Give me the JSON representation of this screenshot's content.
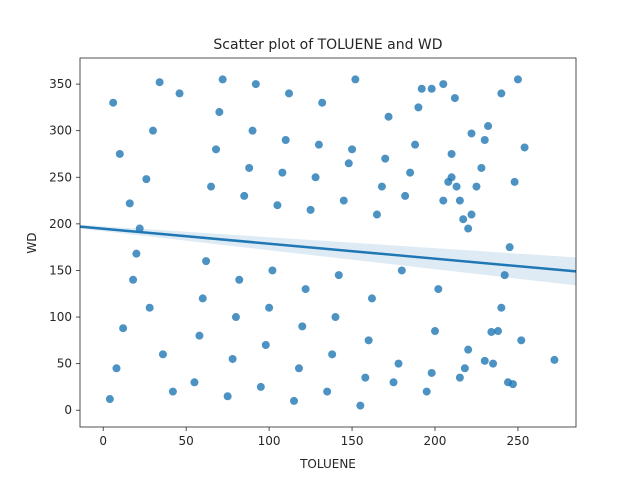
{
  "chart_data": {
    "type": "scatter",
    "title": "Scatter plot of TOLUENE and WD",
    "xlabel": "TOLUENE",
    "ylabel": "WD",
    "xlim": [
      -14,
      285
    ],
    "ylim": [
      -18,
      378
    ],
    "xticks": [
      0,
      50,
      100,
      150,
      200,
      250
    ],
    "yticks": [
      0,
      50,
      100,
      150,
      200,
      250,
      300,
      350
    ],
    "grid": false,
    "legend": "none",
    "point_color": "#1f77b4",
    "point_opacity": 0.8,
    "series": [
      {
        "values": [
          [
            4,
            12
          ],
          [
            8,
            45
          ],
          [
            12,
            88
          ],
          [
            18,
            140
          ],
          [
            22,
            195
          ],
          [
            26,
            248
          ],
          [
            30,
            300
          ],
          [
            34,
            352
          ],
          [
            6,
            330
          ],
          [
            10,
            275
          ],
          [
            16,
            222
          ],
          [
            20,
            168
          ],
          [
            28,
            110
          ],
          [
            36,
            60
          ],
          [
            42,
            20
          ],
          [
            46,
            340
          ],
          [
            55,
            30
          ],
          [
            58,
            80
          ],
          [
            60,
            120
          ],
          [
            62,
            160
          ],
          [
            65,
            240
          ],
          [
            68,
            280
          ],
          [
            70,
            320
          ],
          [
            72,
            355
          ],
          [
            75,
            15
          ],
          [
            78,
            55
          ],
          [
            80,
            100
          ],
          [
            82,
            140
          ],
          [
            85,
            230
          ],
          [
            88,
            260
          ],
          [
            90,
            300
          ],
          [
            92,
            350
          ],
          [
            95,
            25
          ],
          [
            98,
            70
          ],
          [
            100,
            110
          ],
          [
            102,
            150
          ],
          [
            105,
            220
          ],
          [
            108,
            255
          ],
          [
            110,
            290
          ],
          [
            112,
            340
          ],
          [
            115,
            10
          ],
          [
            118,
            45
          ],
          [
            120,
            90
          ],
          [
            122,
            130
          ],
          [
            125,
            215
          ],
          [
            128,
            250
          ],
          [
            130,
            285
          ],
          [
            132,
            330
          ],
          [
            135,
            20
          ],
          [
            138,
            60
          ],
          [
            140,
            100
          ],
          [
            142,
            145
          ],
          [
            145,
            225
          ],
          [
            148,
            265
          ],
          [
            150,
            280
          ],
          [
            152,
            355
          ],
          [
            155,
            5
          ],
          [
            158,
            35
          ],
          [
            160,
            75
          ],
          [
            162,
            120
          ],
          [
            165,
            210
          ],
          [
            168,
            240
          ],
          [
            170,
            270
          ],
          [
            172,
            315
          ],
          [
            175,
            30
          ],
          [
            178,
            50
          ],
          [
            180,
            150
          ],
          [
            182,
            230
          ],
          [
            185,
            255
          ],
          [
            188,
            285
          ],
          [
            190,
            325
          ],
          [
            192,
            345
          ],
          [
            195,
            20
          ],
          [
            198,
            40
          ],
          [
            200,
            85
          ],
          [
            202,
            130
          ],
          [
            205,
            225
          ],
          [
            208,
            245
          ],
          [
            210,
            275
          ],
          [
            212,
            335
          ],
          [
            215,
            35
          ],
          [
            218,
            45
          ],
          [
            220,
            65
          ],
          [
            222,
            210
          ],
          [
            225,
            240
          ],
          [
            228,
            260
          ],
          [
            230,
            290
          ],
          [
            232,
            305
          ],
          [
            235,
            50
          ],
          [
            238,
            85
          ],
          [
            240,
            110
          ],
          [
            242,
            145
          ],
          [
            245,
            175
          ],
          [
            248,
            245
          ],
          [
            250,
            355
          ],
          [
            252,
            75
          ],
          [
            254,
            282
          ],
          [
            272,
            54
          ],
          [
            244,
            30
          ],
          [
            247,
            28
          ],
          [
            222,
            297
          ],
          [
            230,
            53
          ],
          [
            234,
            84
          ],
          [
            240,
            340
          ],
          [
            198,
            345
          ],
          [
            205,
            350
          ],
          [
            210,
            250
          ],
          [
            213,
            240
          ],
          [
            215,
            225
          ],
          [
            217,
            205
          ],
          [
            220,
            195
          ]
        ]
      }
    ],
    "regression": {
      "x": [
        -14,
        285
      ],
      "y": [
        197,
        149
      ],
      "ci_lower_end": 134,
      "ci_upper_end": 164,
      "color": "#1f77b4"
    }
  }
}
